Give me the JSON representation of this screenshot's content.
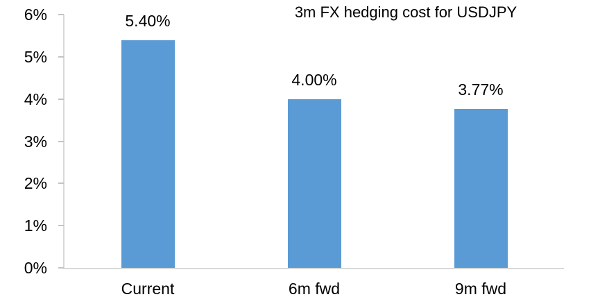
{
  "chart_data": {
    "type": "bar",
    "title": "3m FX hedging cost for USDJPY",
    "categories": [
      "Current",
      "6m fwd",
      "9m fwd"
    ],
    "values": [
      5.4,
      4.0,
      3.77
    ],
    "value_labels": [
      "5.40%",
      "4.00%",
      "3.77%"
    ],
    "y_axis": {
      "tick_values": [
        0,
        1,
        2,
        3,
        4,
        5,
        6
      ],
      "tick_labels": [
        "0%",
        "1%",
        "2%",
        "3%",
        "4%",
        "5%",
        "6%"
      ],
      "ylim": [
        0,
        6
      ]
    },
    "xlabel": "",
    "ylabel": "",
    "grid": false,
    "legend": "none",
    "colors": {
      "bar": "#5B9BD5",
      "axis_line": "#D9D9D9",
      "tick_mark": "#C3C3C3",
      "text": "#000000",
      "background": "#FFFFFF"
    }
  }
}
